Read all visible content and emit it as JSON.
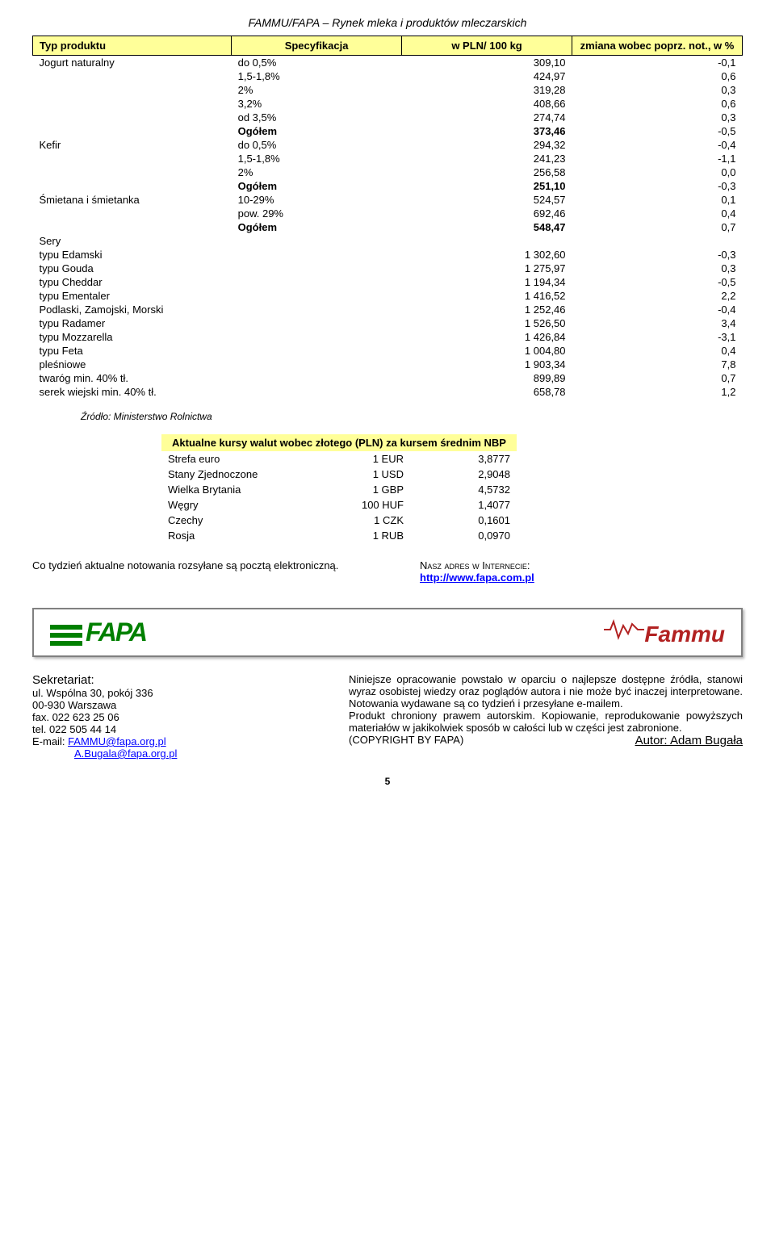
{
  "header": "FAMMU/FAPA – Rynek mleka i produktów mleczarskich",
  "table": {
    "headers": {
      "type": "Typ produktu",
      "spec": "Specyfikacja",
      "price": "w PLN/ 100 kg",
      "change": "zmiana wobec poprz. not., w %"
    },
    "groups": [
      {
        "type": "Jogurt naturalny",
        "rows": [
          {
            "spec": "do 0,5%",
            "price": "309,10",
            "change": "-0,1"
          },
          {
            "spec": "1,5-1,8%",
            "price": "424,97",
            "change": "0,6"
          },
          {
            "spec": "2%",
            "price": "319,28",
            "change": "0,3"
          },
          {
            "spec": "3,2%",
            "price": "408,66",
            "change": "0,6"
          },
          {
            "spec": "od 3,5%",
            "price": "274,74",
            "change": "0,3"
          }
        ],
        "total": {
          "spec": "Ogółem",
          "price": "373,46",
          "change": "-0,5"
        }
      },
      {
        "type": "Kefir",
        "rows": [
          {
            "spec": "do 0,5%",
            "price": "294,32",
            "change": "-0,4"
          },
          {
            "spec": "1,5-1,8%",
            "price": "241,23",
            "change": "-1,1"
          },
          {
            "spec": "2%",
            "price": "256,58",
            "change": "0,0"
          }
        ],
        "total": {
          "spec": "Ogółem",
          "price": "251,10",
          "change": "-0,3"
        }
      },
      {
        "type": "Śmietana i śmietanka",
        "rows": [
          {
            "spec": "10-29%",
            "price": "524,57",
            "change": "0,1"
          },
          {
            "spec": "pow. 29%",
            "price": "692,46",
            "change": "0,4"
          }
        ],
        "total": {
          "spec": "Ogółem",
          "price": "548,47",
          "change": "0,7"
        }
      }
    ],
    "sery_label": "Sery",
    "sery": [
      {
        "type": "typu Edamski",
        "price": "1 302,60",
        "change": "-0,3"
      },
      {
        "type": "typu Gouda",
        "price": "1 275,97",
        "change": "0,3"
      },
      {
        "type": "typu Cheddar",
        "price": "1 194,34",
        "change": "-0,5"
      },
      {
        "type": "typu Ementaler",
        "price": "1 416,52",
        "change": "2,2"
      },
      {
        "type": "Podlaski, Zamojski, Morski",
        "price": "1 252,46",
        "change": "-0,4"
      },
      {
        "type": "typu Radamer",
        "price": "1 526,50",
        "change": "3,4"
      },
      {
        "type": "typu Mozzarella",
        "price": "1 426,84",
        "change": "-3,1"
      },
      {
        "type": "typu Feta",
        "price": "1 004,80",
        "change": "0,4"
      },
      {
        "type": "pleśniowe",
        "price": "1 903,34",
        "change": "7,8"
      },
      {
        "type": "twaróg min. 40% tł.",
        "price": "899,89",
        "change": "0,7"
      },
      {
        "type": "serek wiejski min. 40% tł.",
        "price": "658,78",
        "change": "1,2"
      }
    ]
  },
  "source": "Źródło: Ministerstwo Rolnictwa",
  "exchange": {
    "title": "Aktualne kursy walut wobec złotego (PLN) za kursem średnim NBP",
    "rows": [
      {
        "country": "Strefa euro",
        "unit": "1 EUR",
        "rate": "3,8777"
      },
      {
        "country": "Stany Zjednoczone",
        "unit": "1 USD",
        "rate": "2,9048"
      },
      {
        "country": "Wielka Brytania",
        "unit": "1 GBP",
        "rate": "4,5732"
      },
      {
        "country": "Węgry",
        "unit": "100 HUF",
        "rate": "1,4077"
      },
      {
        "country": "Czechy",
        "unit": "1 CZK",
        "rate": "0,1601"
      },
      {
        "country": "Rosja",
        "unit": "1 RUB",
        "rate": "0,0970"
      }
    ]
  },
  "weekly_note": "Co tydzień aktualne notowania rozsyłane są pocztą elektroniczną.",
  "internet": {
    "label": "Nasz adres w Internecie:",
    "url": "http://www.fapa.com.pl"
  },
  "logos": {
    "fapa": "FAPA",
    "fammu": "Fammu"
  },
  "contact": {
    "title": "Sekretariat:",
    "addr1": "ul. Wspólna 30, pokój 336",
    "addr2": "00-930 Warszawa",
    "fax": "fax.   022 623 25 06",
    "tel": "tel.   022 505 44 14",
    "email_label": "E-mail: ",
    "email1": "FAMMU@fapa.org.pl",
    "email2": "A.Bugala@fapa.org.pl"
  },
  "disclaimer": {
    "p1": "Niniejsze opracowanie powstało w oparciu o najlepsze dostępne źródła, stanowi wyraz osobistej wiedzy oraz poglądów autora i nie może być inaczej interpretowane. Notowania wydawane są co tydzień i przesyłane e-mailem.",
    "p2": "Produkt chroniony prawem autorskim. Kopiowanie, reprodukowanie powyższych materiałów w jakikolwiek sposób w całości lub w części jest zabronione.",
    "copyright": "(COPYRIGHT BY FAPA)",
    "author_label": "Autor: Adam Bugała"
  },
  "page": "5"
}
